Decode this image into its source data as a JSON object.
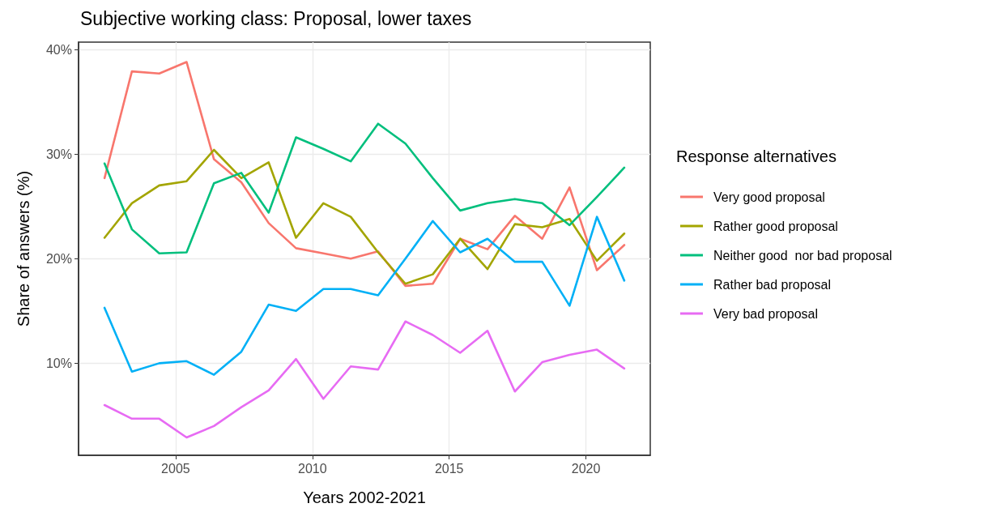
{
  "chart_data": {
    "type": "line",
    "title": "Subjective working class: Proposal, lower taxes",
    "xlabel": "Years 2002-2021",
    "ylabel": "Share of answers (%)",
    "legend_title": "Response alternatives",
    "x": [
      2002.4,
      2003.4,
      2004.4,
      2005.4,
      2006.4,
      2007.4,
      2008.4,
      2009.4,
      2010.4,
      2011.4,
      2012.4,
      2013.4,
      2014.4,
      2015.4,
      2016.4,
      2017.4,
      2018.4,
      2019.4,
      2020.4,
      2021.4
    ],
    "series": [
      {
        "name": "Very good proposal",
        "color": "#f8766d",
        "values": [
          27.7,
          37.9,
          37.7,
          38.8,
          29.5,
          27.3,
          23.4,
          21.0,
          20.5,
          20.0,
          20.7,
          17.4,
          17.6,
          21.9,
          20.9,
          24.1,
          21.9,
          26.8,
          18.9,
          21.3
        ]
      },
      {
        "name": "Rather good proposal",
        "color": "#a3a500",
        "values": [
          22.0,
          25.3,
          27.0,
          27.4,
          30.4,
          27.7,
          29.2,
          22.0,
          25.3,
          24.0,
          20.6,
          17.6,
          18.5,
          21.9,
          19.0,
          23.3,
          23.0,
          23.8,
          19.8,
          22.4
        ]
      },
      {
        "name": "Neither good  nor bad proposal",
        "color": "#00bf7d",
        "values": [
          29.1,
          22.8,
          20.5,
          20.6,
          27.2,
          28.2,
          24.4,
          31.6,
          30.5,
          29.3,
          32.9,
          31.0,
          27.7,
          24.6,
          25.3,
          25.7,
          25.3,
          23.2,
          25.9,
          28.7
        ]
      },
      {
        "name": "Rather bad proposal",
        "color": "#00b0f6",
        "values": [
          15.3,
          9.2,
          10.0,
          10.2,
          8.9,
          11.1,
          15.6,
          15.0,
          17.1,
          17.1,
          16.5,
          20.0,
          23.6,
          20.6,
          21.9,
          19.7,
          19.7,
          15.5,
          24.0,
          17.9
        ]
      },
      {
        "name": "Very bad proposal",
        "color": "#e76bf3",
        "values": [
          6.0,
          4.7,
          4.7,
          2.9,
          4.0,
          5.8,
          7.4,
          10.4,
          6.6,
          9.7,
          9.4,
          14.0,
          12.7,
          11.0,
          13.1,
          7.3,
          10.1,
          10.8,
          11.3,
          9.5
        ]
      }
    ],
    "xlim": [
      2001.45,
      2022.35
    ],
    "xticks": [
      2005,
      2010,
      2015,
      2020
    ],
    "ylim": [
      1.2,
      40.7
    ],
    "yticks": [
      {
        "value": 10,
        "label": "10%"
      },
      {
        "value": 20,
        "label": "20%"
      },
      {
        "value": 30,
        "label": "30%"
      },
      {
        "value": 40,
        "label": "40%"
      }
    ],
    "grid": true,
    "legend": "right",
    "marker": "none",
    "line_style": "solid"
  }
}
